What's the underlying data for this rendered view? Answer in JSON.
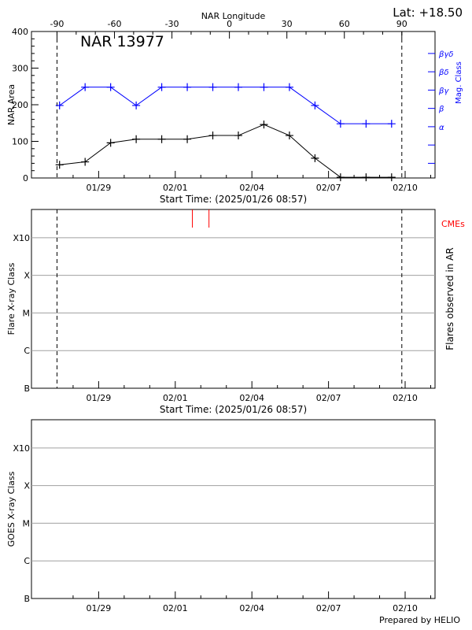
{
  "latitude_label": "Lat: +18.50",
  "region_label": "NAR 13977",
  "footer": "Prepared by HELIO",
  "colors": {
    "axis": "#000000",
    "mag": "#0000ff",
    "cme": "#ff0000",
    "grid": "#a0a0a0"
  },
  "chart_data": [
    {
      "type": "line",
      "title": "NAR 13977",
      "x_unit": "days since 2025/01/26 08:57",
      "xlim": [
        0,
        15.8
      ],
      "x_tick_labels": [
        {
          "x": 2.63,
          "label": "01/29"
        },
        {
          "x": 5.63,
          "label": "02/01"
        },
        {
          "x": 8.63,
          "label": "02/04"
        },
        {
          "x": 11.63,
          "label": "02/07"
        },
        {
          "x": 14.63,
          "label": "02/10"
        }
      ],
      "xlabel": "Start Time: (2025/01/26 08:57)",
      "top_axis": {
        "label": "NAR Longitude",
        "ticks": [
          {
            "x": 1.0,
            "label": "-90"
          },
          {
            "x": 3.25,
            "label": "-60"
          },
          {
            "x": 5.5,
            "label": "-30"
          },
          {
            "x": 7.75,
            "label": "0"
          },
          {
            "x": 10.0,
            "label": "30"
          },
          {
            "x": 12.25,
            "label": "60"
          },
          {
            "x": 14.5,
            "label": "90"
          }
        ]
      },
      "ylabel": "NAR Area",
      "ylim": [
        0,
        400
      ],
      "y_ticks": [
        0,
        100,
        200,
        300,
        400
      ],
      "right_axis": {
        "label": "Mag. Class",
        "ticks": [
          {
            "y": 40,
            "label": ""
          },
          {
            "y": 90,
            "label": ""
          },
          {
            "y": 140,
            "label": "α"
          },
          {
            "y": 190,
            "label": "β"
          },
          {
            "y": 240,
            "label": "βγ"
          },
          {
            "y": 290,
            "label": "βδ"
          },
          {
            "y": 340,
            "label": "βγδ"
          }
        ]
      },
      "vlines_dashed": [
        1.0,
        14.5
      ],
      "series": [
        {
          "name": "NAR Area",
          "x": [
            1.1,
            2.1,
            3.1,
            4.1,
            5.1,
            6.1,
            7.1,
            8.1,
            9.1,
            10.1,
            11.1,
            12.1,
            13.1,
            14.1
          ],
          "y": [
            36,
            44,
            96,
            106,
            106,
            106,
            116,
            116,
            146,
            116,
            54,
            2,
            2,
            2
          ]
        },
        {
          "name": "Mag. Class",
          "x": [
            1.1,
            2.1,
            3.1,
            4.1,
            5.1,
            6.1,
            7.1,
            8.1,
            9.1,
            10.1,
            11.1,
            12.1,
            13.1,
            14.1
          ],
          "y": [
            198,
            248,
            248,
            198,
            248,
            248,
            248,
            248,
            248,
            248,
            198,
            148,
            148,
            148
          ]
        }
      ]
    },
    {
      "type": "scatter",
      "xlim": [
        0,
        15.8
      ],
      "x_tick_labels": [
        {
          "x": 2.63,
          "label": "01/29"
        },
        {
          "x": 5.63,
          "label": "02/01"
        },
        {
          "x": 8.63,
          "label": "02/04"
        },
        {
          "x": 11.63,
          "label": "02/07"
        },
        {
          "x": 14.63,
          "label": "02/10"
        }
      ],
      "xlabel": "Start Time: (2025/01/26 08:57)",
      "ylabel": "Flare X-ray Class",
      "right_label": "Flares observed in AR",
      "y_levels": [
        "B",
        "C",
        "M",
        "X",
        "X10"
      ],
      "grid": true,
      "vlines_dashed": [
        1.0,
        14.5
      ],
      "cme_label": "CMEs",
      "cmes": [
        6.3,
        6.95
      ]
    },
    {
      "type": "scatter",
      "xlim": [
        0,
        15.8
      ],
      "x_tick_labels": [
        {
          "x": 2.63,
          "label": "01/29"
        },
        {
          "x": 5.63,
          "label": "02/01"
        },
        {
          "x": 8.63,
          "label": "02/04"
        },
        {
          "x": 11.63,
          "label": "02/07"
        },
        {
          "x": 14.63,
          "label": "02/10"
        }
      ],
      "ylabel": "GOES X-ray Class",
      "y_levels": [
        "B",
        "C",
        "M",
        "X",
        "X10"
      ],
      "grid": true
    }
  ]
}
